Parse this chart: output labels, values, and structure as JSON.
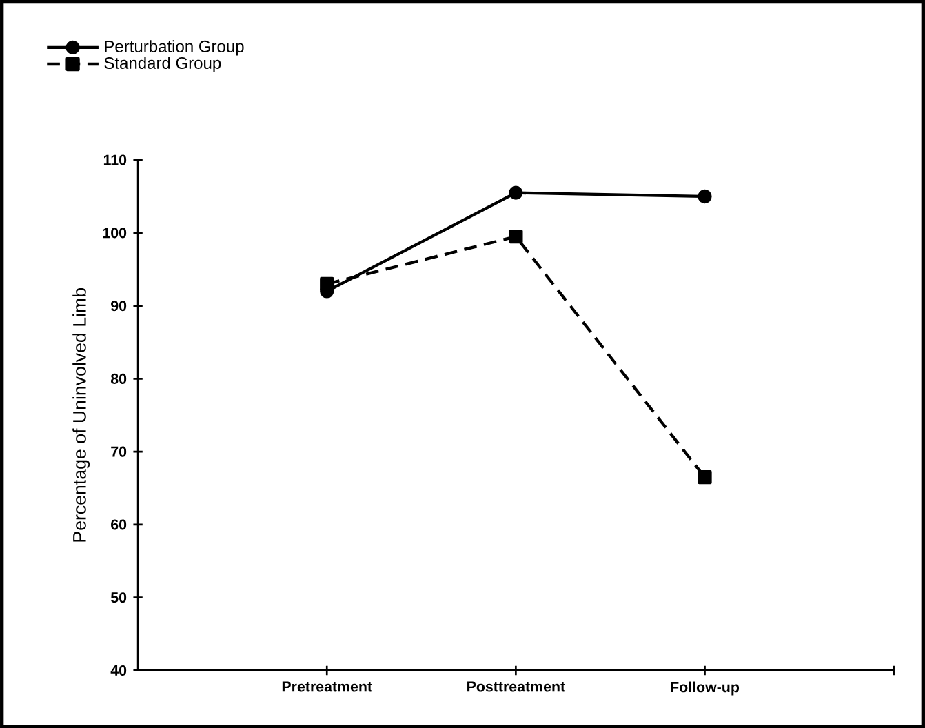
{
  "chart_data": {
    "type": "line",
    "ylabel": "Percentage of Uninvolved Limb",
    "categories": [
      "Pretreatment",
      "Posttreatment",
      "Follow-up"
    ],
    "series": [
      {
        "name": "Perturbation Group",
        "color": "#000000",
        "marker": "circle",
        "line_style": "solid",
        "values": [
          92,
          105.5,
          105
        ]
      },
      {
        "name": "Standard Group",
        "color": "#000000",
        "marker": "square",
        "line_style": "dashed",
        "values": [
          93,
          99.5,
          66.5
        ]
      }
    ],
    "ylim": [
      40,
      110
    ],
    "yticks": [
      40,
      50,
      60,
      70,
      80,
      90,
      100,
      110
    ],
    "legend": "top left"
  }
}
